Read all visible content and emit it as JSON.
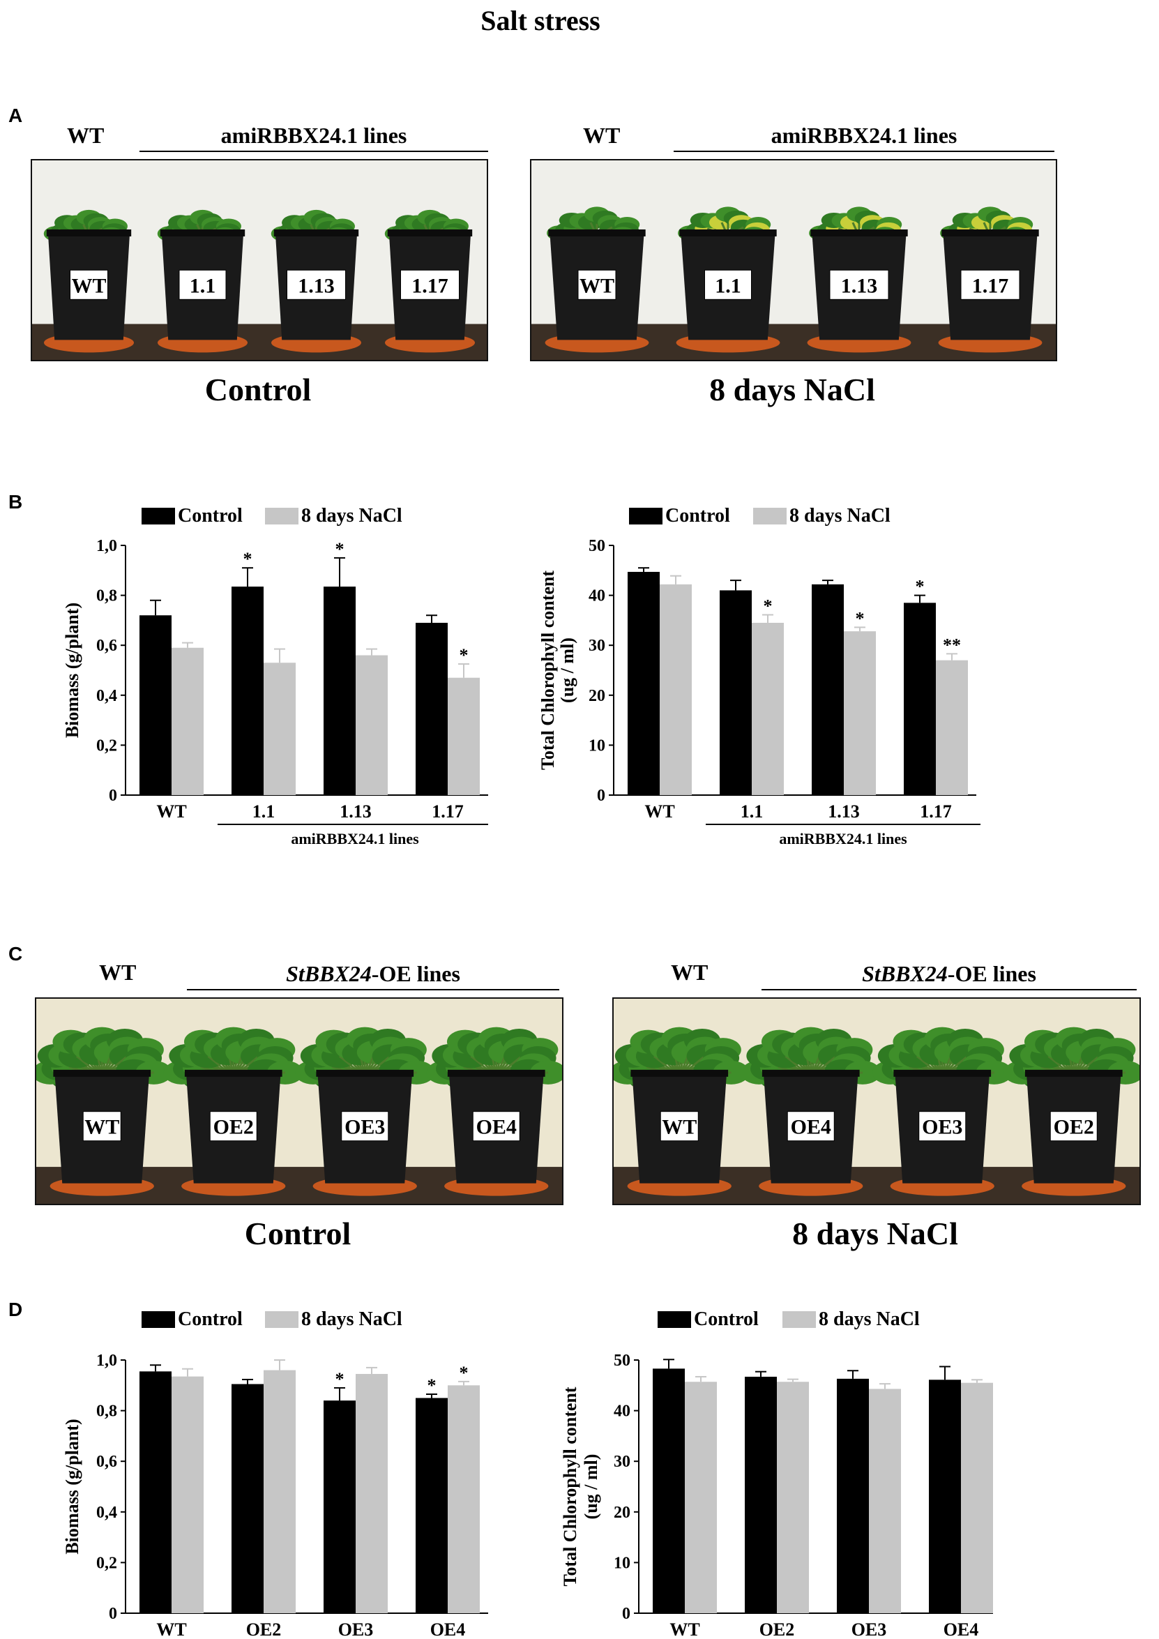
{
  "figure_title": "Salt stress",
  "colors": {
    "control": "#000000",
    "nacl": "#c6c6c6",
    "wall_a": "#efefea",
    "wall_c": "#ece6d0",
    "pot": "#1a1a1a",
    "saucer": "#c8581e",
    "leaf_green": "#3f8f2a",
    "leaf_yellow": "#c8cf3a"
  },
  "panel_a": {
    "letter": "A",
    "photos": [
      {
        "wt_label": "WT",
        "lines_label": "amiRBBX24.1 lines",
        "pot_labels": [
          "WT",
          "1.1",
          "1.13",
          "1.17"
        ],
        "condition": "Control",
        "stressed": false
      },
      {
        "wt_label": "WT",
        "lines_label": "amiRBBX24.1 lines",
        "pot_labels": [
          "WT",
          "1.1",
          "1.13",
          "1.17"
        ],
        "condition": "8 days NaCl",
        "stressed": true
      }
    ]
  },
  "panel_b": {
    "letter": "B"
  },
  "panel_c": {
    "letter": "C",
    "photos": [
      {
        "wt_label": "WT",
        "lines_label_italic": "StBBX24",
        "lines_label_rest": "-OE lines",
        "pot_labels": [
          "WT",
          "OE2",
          "OE3",
          "OE4"
        ],
        "condition": "Control",
        "stressed": false
      },
      {
        "wt_label": "WT",
        "lines_label_italic": "StBBX24",
        "lines_label_rest": "-OE lines",
        "pot_labels": [
          "WT",
          "OE4",
          "OE3",
          "OE2"
        ],
        "condition": "8 days NaCl",
        "stressed": true
      }
    ]
  },
  "panel_d": {
    "letter": "D"
  },
  "chart_data": [
    {
      "panel": "B",
      "type": "bar",
      "categories": [
        "WT",
        "1.1",
        "1.13",
        "1.17"
      ],
      "group_label": "amiRBBX24.1 lines",
      "ylabel": "Biomass (g/plant)",
      "ylim": [
        0,
        1.0
      ],
      "yticks": [
        "0",
        "0,2",
        "0,4",
        "0,6",
        "0,8",
        "1,0"
      ],
      "legend": [
        "Control",
        "8 days NaCl"
      ],
      "series": [
        {
          "name": "Control",
          "values": [
            0.72,
            0.835,
            0.835,
            0.69
          ],
          "errors": [
            0.06,
            0.075,
            0.115,
            0.03
          ],
          "sig": [
            "",
            "*",
            "*",
            ""
          ]
        },
        {
          "name": "8 days NaCl",
          "values": [
            0.59,
            0.53,
            0.56,
            0.47
          ],
          "errors": [
            0.02,
            0.055,
            0.025,
            0.055
          ],
          "sig": [
            "",
            "",
            "",
            "*"
          ]
        }
      ]
    },
    {
      "panel": "B",
      "type": "bar",
      "categories": [
        "WT",
        "1.1",
        "1.13",
        "1.17"
      ],
      "group_label": "amiRBBX24.1 lines",
      "ylabel": "Total Chlorophyll content",
      "ylabel2": "(ug / ml)",
      "ylim": [
        0,
        50
      ],
      "yticks": [
        "0",
        "10",
        "20",
        "30",
        "40",
        "50"
      ],
      "legend": [
        "Control",
        "8 days NaCl"
      ],
      "series": [
        {
          "name": "Control",
          "values": [
            44.7,
            41.0,
            42.2,
            38.5
          ],
          "errors": [
            0.8,
            2.0,
            0.8,
            1.5
          ],
          "sig": [
            "",
            "",
            "",
            "*"
          ]
        },
        {
          "name": "8 days NaCl",
          "values": [
            42.2,
            34.5,
            32.8,
            27.0
          ],
          "errors": [
            1.7,
            1.6,
            0.8,
            1.3
          ],
          "sig": [
            "",
            "*",
            "*",
            "**"
          ]
        }
      ]
    },
    {
      "panel": "D",
      "type": "bar",
      "categories": [
        "WT",
        "OE2",
        "OE3",
        "OE4"
      ],
      "ylabel": "Biomass (g/plant)",
      "ylim": [
        0,
        1.0
      ],
      "yticks": [
        "0",
        "0,2",
        "0,4",
        "0,6",
        "0,8",
        "1,0"
      ],
      "legend": [
        "Control",
        "8 days NaCl"
      ],
      "series": [
        {
          "name": "Control",
          "values": [
            0.955,
            0.905,
            0.84,
            0.85
          ],
          "errors": [
            0.025,
            0.018,
            0.05,
            0.015
          ],
          "sig": [
            "",
            "",
            "*",
            "*"
          ]
        },
        {
          "name": "8 days NaCl",
          "values": [
            0.935,
            0.96,
            0.945,
            0.9
          ],
          "errors": [
            0.03,
            0.04,
            0.025,
            0.015
          ],
          "sig": [
            "",
            "",
            "",
            "*"
          ]
        }
      ]
    },
    {
      "panel": "D",
      "type": "bar",
      "categories": [
        "WT",
        "OE2",
        "OE3",
        "OE4"
      ],
      "ylabel": "Total Chlorophyll content",
      "ylabel2": "(ug / ml)",
      "ylim": [
        0,
        50
      ],
      "yticks": [
        "0",
        "10",
        "20",
        "30",
        "40",
        "50"
      ],
      "legend": [
        "Control",
        "8 days NaCl"
      ],
      "series": [
        {
          "name": "Control",
          "values": [
            48.3,
            46.7,
            46.3,
            46.1
          ],
          "errors": [
            1.8,
            1.0,
            1.6,
            2.6
          ],
          "sig": [
            "",
            "",
            "",
            ""
          ]
        },
        {
          "name": "8 days NaCl",
          "values": [
            45.7,
            45.7,
            44.3,
            45.5
          ],
          "errors": [
            1.0,
            0.5,
            1.0,
            0.6
          ],
          "sig": [
            "",
            "",
            "",
            ""
          ]
        }
      ]
    }
  ]
}
